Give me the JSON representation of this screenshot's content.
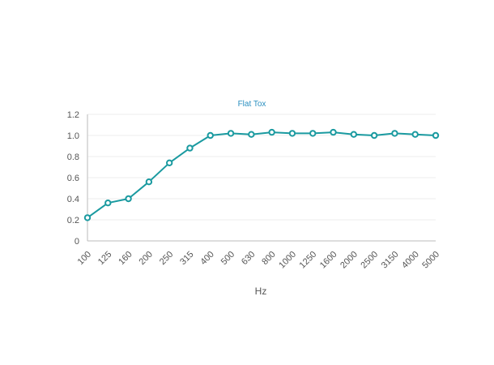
{
  "chart_data": {
    "type": "line",
    "title": "Flat Tox",
    "xlabel": "Hz",
    "ylabel": "",
    "categories": [
      "100",
      "125",
      "160",
      "200",
      "250",
      "315",
      "400",
      "500",
      "630",
      "800",
      "1000",
      "1250",
      "1600",
      "2000",
      "2500",
      "3150",
      "4000",
      "5000"
    ],
    "series": [
      {
        "values": [
          0.22,
          0.36,
          0.4,
          0.56,
          0.74,
          0.88,
          1.0,
          1.02,
          1.01,
          1.03,
          1.02,
          1.02,
          1.03,
          1.01,
          1.0,
          1.02,
          1.01,
          1.0
        ]
      }
    ],
    "ylim": [
      0,
      1.2
    ],
    "yticks": [
      "0",
      "0.2",
      "0.4",
      "0.6",
      "0.8",
      "1.0",
      "1.2"
    ],
    "grid": true,
    "colors": {
      "line": "#1a9aa0",
      "title": "#2a8fc0",
      "grid": "#eeeeee",
      "axis": "#bbbbbb"
    }
  }
}
